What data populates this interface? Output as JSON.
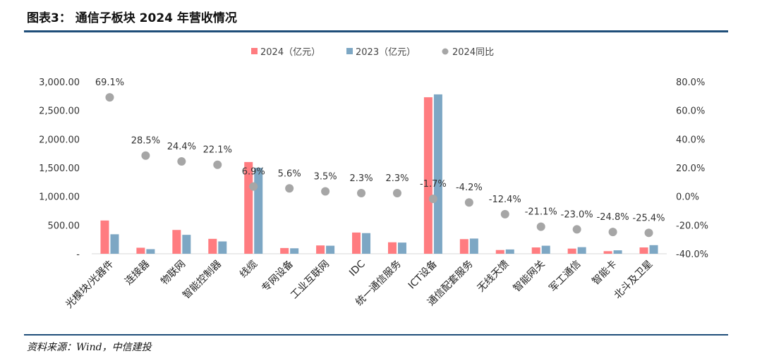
{
  "figure": {
    "title": "图表3：  通信子板块 2024 年营收情况",
    "source": "资料来源：Wind，中信建投"
  },
  "chart_data": {
    "type": "bar",
    "title": "通信子板块 2024 年营收情况",
    "categories": [
      "光模块/光器件",
      "连接器",
      "物联网",
      "智能控制器",
      "线缆",
      "专网设备",
      "工业互联网",
      "IDC",
      "统一通信服务",
      "ICT设备",
      "通信配套服务",
      "无线天馈",
      "智能网关",
      "军工通信",
      "智能卡",
      "北斗及卫星"
    ],
    "series": [
      {
        "name": "2024（亿元）",
        "type": "bar",
        "axis": "left",
        "color": "#ff7c80",
        "values": [
          580,
          105,
          415,
          260,
          1600,
          100,
          145,
          370,
          200,
          2730,
          255,
          65,
          110,
          90,
          45,
          110
        ]
      },
      {
        "name": "2023（亿元）",
        "type": "bar",
        "axis": "left",
        "color": "#7da7c4",
        "values": [
          340,
          80,
          330,
          215,
          1500,
          95,
          140,
          360,
          195,
          2780,
          265,
          75,
          140,
          115,
          60,
          150
        ]
      },
      {
        "name": "2024同比",
        "type": "scatter",
        "axis": "right",
        "color": "#a6a6a6",
        "values": [
          69.1,
          28.5,
          24.4,
          22.1,
          6.9,
          5.6,
          3.5,
          2.3,
          2.3,
          -1.7,
          -4.2,
          -12.4,
          -21.1,
          -23.0,
          -24.8,
          -25.4
        ],
        "labels": [
          "69.1%",
          "28.5%",
          "24.4%",
          "22.1%",
          "6.9%",
          "5.6%",
          "3.5%",
          "2.3%",
          "2.3%",
          "-1.7%",
          "-4.2%",
          "-12.4%",
          "-21.1%",
          "-23.0%",
          "-24.8%",
          "-25.4%"
        ]
      }
    ],
    "y_left": {
      "min": 0,
      "max": 3000,
      "ticks": [
        0,
        500,
        1000,
        1500,
        2000,
        2500,
        3000
      ],
      "tick_labels": [
        "-",
        "500.00",
        "1,000.00",
        "1,500.00",
        "2,000.00",
        "2,500.00",
        "3,000.00"
      ]
    },
    "y_right": {
      "min": -40,
      "max": 80,
      "ticks": [
        -40,
        -20,
        0,
        20,
        40,
        60,
        80
      ],
      "tick_labels": [
        "-40.0%",
        "-20.0%",
        "0.0%",
        "20.0%",
        "40.0%",
        "60.0%",
        "80.0%"
      ]
    },
    "legend": [
      "2024（亿元）",
      "2023（亿元）",
      "2024同比"
    ],
    "legend_position": "top-center",
    "grid": false
  }
}
